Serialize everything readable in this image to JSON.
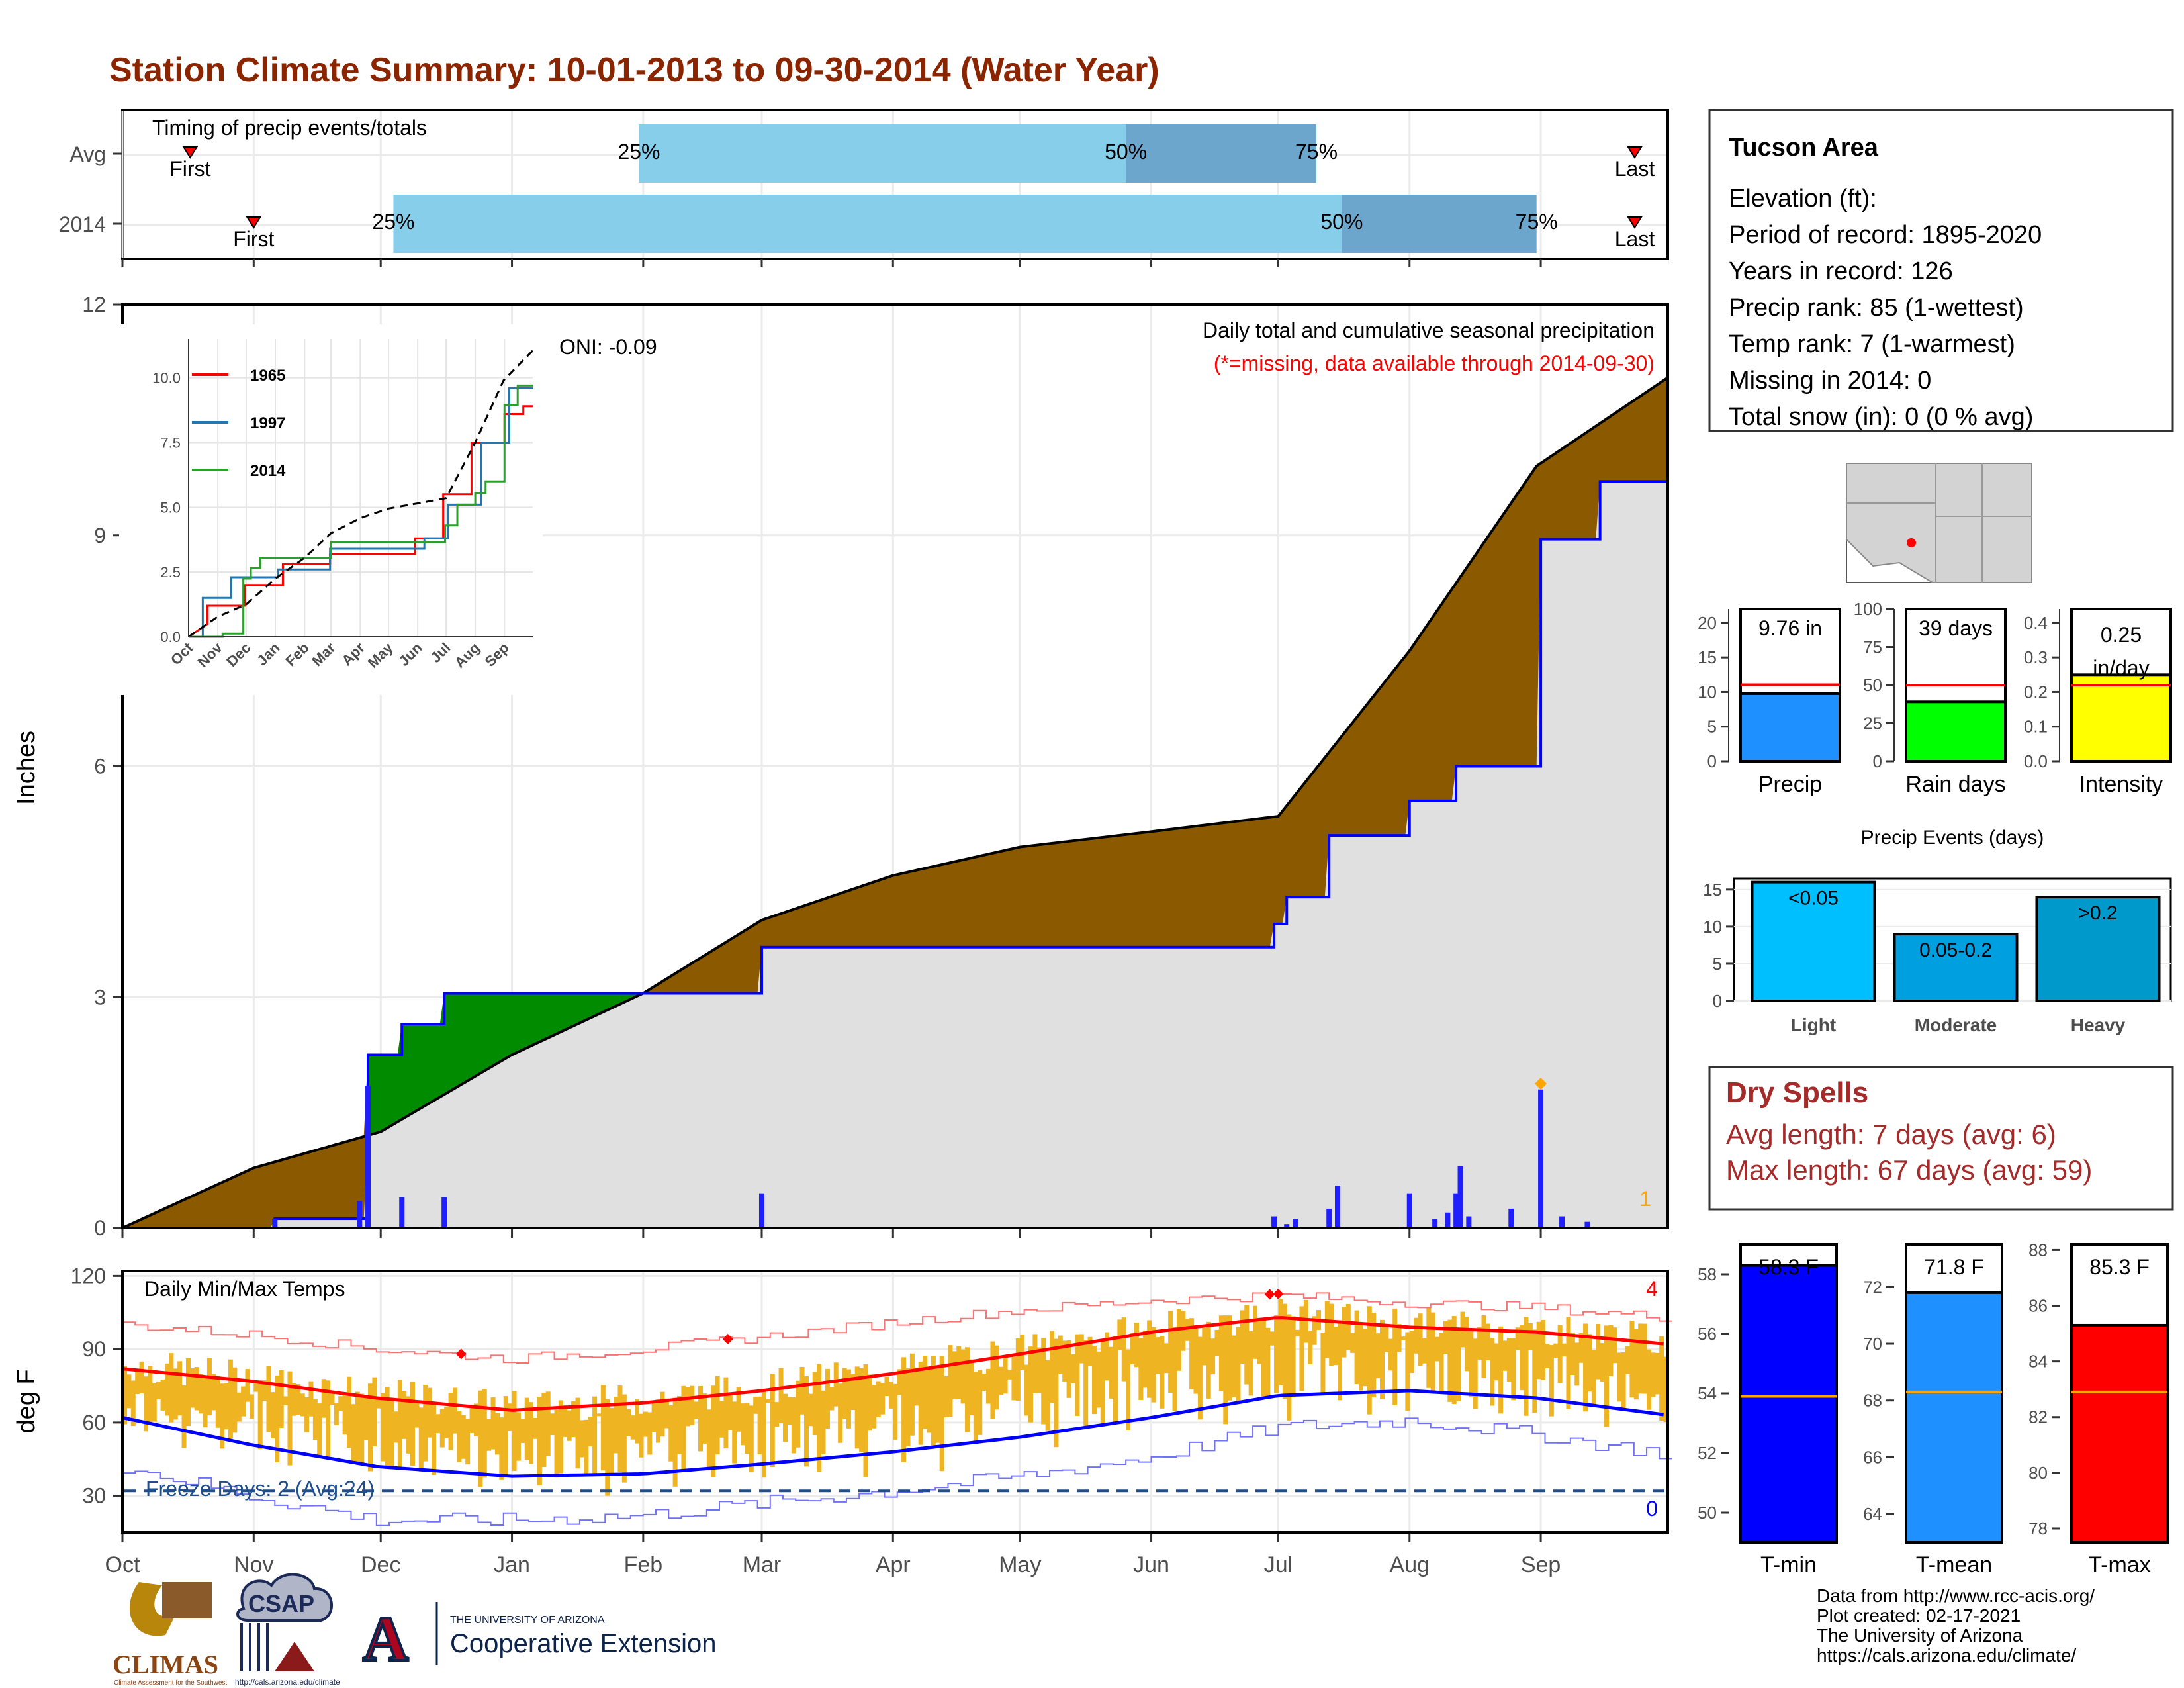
{
  "title": "Station Climate Summary: 10-01-2013 to 09-30-2014 (Water Year)",
  "colors": {
    "title": "#8B2500",
    "light_bar": "#87CEEB",
    "dark_bar": "#6CA6CD",
    "seasonal_brown": "#8B5A00",
    "seasonal_green": "#008B00",
    "gray_fill": "#E0E0E0",
    "precip_blue": "#1E1EFF",
    "temp_orange": "#EEB422",
    "line_red": "#FF0000",
    "line_blue": "#0000FF",
    "dry_spell_text": "#A52A2A"
  },
  "timing": {
    "label": "Timing of precip events/totals",
    "rows": [
      "Avg",
      "2014"
    ],
    "first_label": "First",
    "last_label": "Last",
    "q25": "25%",
    "q50": "50%",
    "q75": "75%",
    "avg": {
      "first": 16,
      "q25": 122,
      "q50": 237,
      "q75": 282,
      "last": 365
    },
    "y2014": {
      "first": 31,
      "q25": 64,
      "q50": 288,
      "q75": 334,
      "last": 365
    }
  },
  "months": [
    "Oct",
    "Nov",
    "Dec",
    "Jan",
    "Feb",
    "Mar",
    "Apr",
    "May",
    "Jun",
    "Jul",
    "Aug",
    "Sep"
  ],
  "main_chart": {
    "ylabel": "Inches",
    "yticks": [
      "0",
      "3",
      "6",
      "9",
      "12"
    ],
    "caption": "Daily total and cumulative seasonal precipitation",
    "missing_note": "(*=missing, data available through 2014-09-30)",
    "oni": "ONI: -0.09",
    "missing_count": "1",
    "chart_data": {
      "type": "area",
      "ylim": [
        0,
        12
      ],
      "avg_cumulative": [
        [
          0,
          0.0
        ],
        [
          31,
          0.78
        ],
        [
          61,
          1.25
        ],
        [
          92,
          2.25
        ],
        [
          123,
          3.05
        ],
        [
          151,
          4.0
        ],
        [
          182,
          4.58
        ],
        [
          212,
          4.95
        ],
        [
          243,
          5.15
        ],
        [
          273,
          5.35
        ],
        [
          304,
          7.5
        ],
        [
          334,
          9.9
        ],
        [
          365,
          11.05
        ]
      ],
      "observed_cumulative": [
        [
          0,
          0.0
        ],
        [
          36,
          0.0
        ],
        [
          36,
          0.12
        ],
        [
          58,
          0.12
        ],
        [
          58,
          2.25
        ],
        [
          66,
          2.25
        ],
        [
          66,
          2.65
        ],
        [
          76,
          2.65
        ],
        [
          76,
          3.05
        ],
        [
          151,
          3.05
        ],
        [
          151,
          3.65
        ],
        [
          272,
          3.65
        ],
        [
          272,
          3.95
        ],
        [
          275,
          3.95
        ],
        [
          275,
          4.3
        ],
        [
          285,
          4.3
        ],
        [
          285,
          5.1
        ],
        [
          304,
          5.1
        ],
        [
          304,
          5.55
        ],
        [
          315,
          5.55
        ],
        [
          315,
          6.0
        ],
        [
          335,
          6.0
        ],
        [
          335,
          8.95
        ],
        [
          349,
          8.95
        ],
        [
          349,
          9.7
        ],
        [
          365,
          9.7
        ]
      ],
      "daily_precip": [
        [
          36,
          0.12
        ],
        [
          56,
          0.35
        ],
        [
          58,
          1.85
        ],
        [
          66,
          0.4
        ],
        [
          76,
          0.4
        ],
        [
          151,
          0.45
        ],
        [
          272,
          0.15
        ],
        [
          275,
          0.05
        ],
        [
          277,
          0.12
        ],
        [
          285,
          0.25
        ],
        [
          287,
          0.55
        ],
        [
          304,
          0.45
        ],
        [
          310,
          0.12
        ],
        [
          313,
          0.2
        ],
        [
          315,
          0.45
        ],
        [
          316,
          0.8
        ],
        [
          318,
          0.15
        ],
        [
          328,
          0.25
        ],
        [
          335,
          1.8
        ],
        [
          340,
          0.15
        ],
        [
          346,
          0.08
        ]
      ],
      "max_marker_day": 335
    },
    "inset": {
      "yticks": [
        "0.0",
        "2.5",
        "5.0",
        "7.5",
        "10.0"
      ],
      "xticks": [
        "Oct",
        "Nov",
        "Dec",
        "Jan",
        "Feb",
        "Mar",
        "Apr",
        "May",
        "Jun",
        "Jul",
        "Aug",
        "Sep"
      ],
      "legend": [
        "1965",
        "1997",
        "2014"
      ],
      "chart_data": {
        "type": "line",
        "ylim": [
          0,
          11.5
        ],
        "series": [
          {
            "name": "1965",
            "color": "#FF0000",
            "points": [
              [
                0,
                0
              ],
              [
                20,
                0.5
              ],
              [
                20,
                1.2
              ],
              [
                60,
                1.2
              ],
              [
                60,
                2.0
              ],
              [
                100,
                2.0
              ],
              [
                100,
                2.8
              ],
              [
                150,
                2.8
              ],
              [
                150,
                3.2
              ],
              [
                240,
                3.2
              ],
              [
                240,
                3.8
              ],
              [
                270,
                3.8
              ],
              [
                270,
                5.5
              ],
              [
                300,
                5.5
              ],
              [
                300,
                7.5
              ],
              [
                335,
                7.5
              ],
              [
                335,
                8.6
              ],
              [
                355,
                8.6
              ],
              [
                355,
                8.9
              ],
              [
                365,
                8.9
              ]
            ]
          },
          {
            "name": "1997",
            "color": "#1F77B4",
            "points": [
              [
                0,
                0
              ],
              [
                15,
                0
              ],
              [
                15,
                1.5
              ],
              [
                45,
                1.5
              ],
              [
                45,
                2.3
              ],
              [
                95,
                2.3
              ],
              [
                95,
                2.6
              ],
              [
                150,
                2.6
              ],
              [
                150,
                3.4
              ],
              [
                250,
                3.4
              ],
              [
                250,
                3.8
              ],
              [
                275,
                3.8
              ],
              [
                275,
                5.1
              ],
              [
                310,
                5.1
              ],
              [
                310,
                7.5
              ],
              [
                340,
                7.5
              ],
              [
                340,
                9.6
              ],
              [
                365,
                9.6
              ]
            ]
          },
          {
            "name": "2014",
            "color": "#2CA02C",
            "points": [
              [
                0,
                0
              ],
              [
                36,
                0
              ],
              [
                36,
                0.12
              ],
              [
                58,
                0.12
              ],
              [
                58,
                2.25
              ],
              [
                66,
                2.25
              ],
              [
                66,
                2.65
              ],
              [
                76,
                2.65
              ],
              [
                76,
                3.05
              ],
              [
                151,
                3.05
              ],
              [
                151,
                3.65
              ],
              [
                272,
                3.65
              ],
              [
                272,
                4.3
              ],
              [
                285,
                4.3
              ],
              [
                285,
                5.1
              ],
              [
                304,
                5.1
              ],
              [
                304,
                5.55
              ],
              [
                315,
                5.55
              ],
              [
                315,
                6.0
              ],
              [
                335,
                6.0
              ],
              [
                335,
                8.95
              ],
              [
                349,
                8.95
              ],
              [
                349,
                9.7
              ],
              [
                365,
                9.7
              ]
            ]
          }
        ],
        "avg_dashed": [
          [
            0,
            0
          ],
          [
            31,
            0.78
          ],
          [
            61,
            1.25
          ],
          [
            92,
            2.25
          ],
          [
            123,
            3.05
          ],
          [
            151,
            4.0
          ],
          [
            182,
            4.58
          ],
          [
            212,
            4.95
          ],
          [
            243,
            5.15
          ],
          [
            273,
            5.35
          ],
          [
            304,
            7.5
          ],
          [
            334,
            9.9
          ],
          [
            365,
            11.05
          ]
        ]
      }
    }
  },
  "temp_chart": {
    "ylabel": "deg F",
    "yticks": [
      "30",
      "60",
      "90",
      "120"
    ],
    "label": "Daily Min/Max Temps",
    "freeze_label": "Freeze Days: 2 (Avg:24)",
    "high_count": "4",
    "low_count": "0",
    "chart_data": {
      "type": "line",
      "ylim": [
        15,
        122
      ],
      "freeze_line": 32,
      "avg_max": [
        [
          0,
          82
        ],
        [
          30,
          77
        ],
        [
          60,
          70
        ],
        [
          92,
          65
        ],
        [
          123,
          68
        ],
        [
          151,
          73
        ],
        [
          182,
          80
        ],
        [
          212,
          88
        ],
        [
          243,
          97
        ],
        [
          273,
          103
        ],
        [
          304,
          99
        ],
        [
          334,
          97
        ],
        [
          365,
          92
        ]
      ],
      "avg_min": [
        [
          0,
          62
        ],
        [
          30,
          51
        ],
        [
          60,
          42
        ],
        [
          92,
          38
        ],
        [
          123,
          39
        ],
        [
          151,
          43
        ],
        [
          182,
          48
        ],
        [
          212,
          54
        ],
        [
          243,
          62
        ],
        [
          273,
          71
        ],
        [
          304,
          73
        ],
        [
          334,
          70
        ],
        [
          365,
          63
        ]
      ],
      "record_high": [
        [
          0,
          100
        ],
        [
          30,
          96
        ],
        [
          60,
          90
        ],
        [
          92,
          86
        ],
        [
          123,
          90
        ],
        [
          151,
          95
        ],
        [
          182,
          101
        ],
        [
          212,
          106
        ],
        [
          243,
          110
        ],
        [
          273,
          112
        ],
        [
          304,
          109
        ],
        [
          334,
          107
        ],
        [
          365,
          103
        ]
      ],
      "record_low": [
        [
          0,
          42
        ],
        [
          30,
          30
        ],
        [
          60,
          20
        ],
        [
          92,
          20
        ],
        [
          123,
          22
        ],
        [
          151,
          27
        ],
        [
          182,
          32
        ],
        [
          212,
          38
        ],
        [
          243,
          46
        ],
        [
          273,
          58
        ],
        [
          304,
          61
        ],
        [
          334,
          55
        ],
        [
          365,
          47
        ]
      ],
      "high_markers": [
        80,
        143,
        271,
        273
      ],
      "spread_max_offset": 10,
      "spread_min_offset": 12
    }
  },
  "station": {
    "name": "Tucson Area",
    "lines": [
      "Elevation (ft):",
      "Period of record: 1895-2020",
      "Years in record: 126",
      "Precip rank: 85 (1-wettest)",
      "Temp rank: 7 (1-warmest)",
      "Missing in 2014: 0",
      "Total snow (in): 0 (0 % avg)"
    ]
  },
  "summary_bars": [
    {
      "xlabel": "Precip",
      "value": 9.76,
      "avg": 11.05,
      "label": "9.76 in",
      "ylim": [
        0,
        22
      ],
      "yticks": [
        "0",
        "5",
        "10",
        "15",
        "20"
      ],
      "tick_values": [
        0,
        5,
        10,
        15,
        20
      ],
      "color": "#1E90FF"
    },
    {
      "xlabel": "Rain days",
      "value": 39,
      "avg": 50,
      "label": "39 days",
      "ylim": [
        0,
        100
      ],
      "yticks": [
        "0",
        "25",
        "50",
        "75",
        "100"
      ],
      "tick_values": [
        0,
        25,
        50,
        75,
        100
      ],
      "color": "#00FF00"
    },
    {
      "xlabel": "Intensity",
      "value": 0.25,
      "avg": 0.22,
      "label": "0.25 in/day",
      "label_a": "0.25",
      "label_b": "in/day",
      "ylim": [
        0,
        0.44
      ],
      "yticks": [
        "0.0",
        "0.1",
        "0.2",
        "0.3",
        "0.4"
      ],
      "tick_values": [
        0,
        0.1,
        0.2,
        0.3,
        0.4
      ],
      "color": "#FFFF00"
    }
  ],
  "precip_events": {
    "title": "Precip Events (days)",
    "yticks": [
      "0",
      "5",
      "10",
      "15"
    ],
    "chart_data": {
      "type": "bar",
      "categories": [
        "Light",
        "Moderate",
        "Heavy"
      ],
      "values": [
        16,
        9,
        14
      ],
      "labels": [
        "<0.05",
        "0.05-0.2",
        ">0.2"
      ],
      "colors": [
        "#00BFFF",
        "#00A0E0",
        "#0099CC"
      ],
      "ylim": [
        0,
        16.5
      ]
    }
  },
  "dry_spells": {
    "title": "Dry Spells",
    "avg_length": "Avg length: 7 days (avg: 6)",
    "max_length": "Max length: 67 days (avg: 59)"
  },
  "temp_bars": [
    {
      "xlabel": "T-min",
      "value": 58.3,
      "avg": 53.9,
      "label": "58.3 F",
      "ylim": [
        49,
        59
      ],
      "yticks": [
        "50",
        "52",
        "54",
        "56",
        "58"
      ],
      "tick_values": [
        50,
        52,
        54,
        56,
        58
      ],
      "color": "#0000FF"
    },
    {
      "xlabel": "T-mean",
      "value": 71.8,
      "avg": 68.3,
      "label": "71.8 F",
      "ylim": [
        63,
        73.5
      ],
      "yticks": [
        "64",
        "66",
        "68",
        "70",
        "72"
      ],
      "tick_values": [
        64,
        66,
        68,
        70,
        72
      ],
      "color": "#1E90FF"
    },
    {
      "xlabel": "T-max",
      "value": 85.3,
      "avg": 82.9,
      "label": "85.3 F",
      "ylim": [
        77.5,
        88.2
      ],
      "yticks": [
        "78",
        "80",
        "82",
        "84",
        "86",
        "88"
      ],
      "tick_values": [
        78,
        80,
        82,
        84,
        86,
        88
      ],
      "color": "#FF0000"
    }
  ],
  "credits": [
    "Data from http://www.rcc-acis.org/",
    "Plot created: 02-17-2021",
    "The University of Arizona",
    "https://cals.arizona.edu/climate/"
  ],
  "logos": {
    "climas": "CLIMAS",
    "climas_sub": "Climate Assessment for the Southwest",
    "csap": "CSAP",
    "csap_url": "http://cals.arizona.edu/climate",
    "ua_small": "THE UNIVERSITY OF ARIZONA",
    "ua_big": "Cooperative Extension"
  }
}
